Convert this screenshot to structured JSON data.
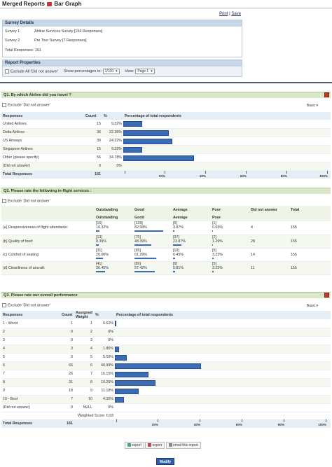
{
  "header": {
    "title_part1": "Merged Reports",
    "title_part2": "Bar Graph",
    "print_link": "Print",
    "save_link": "Save",
    "link_separator": "|"
  },
  "survey_details": {
    "heading": "Survey Details",
    "rows": [
      {
        "label": "Survey 1",
        "value": "Airline Services Survey [154 Responses]"
      },
      {
        "label": "Survey 2",
        "value": "Pre Tour Survey [7 Responses]"
      }
    ],
    "total_label": "Total Responses:",
    "total_value": "161"
  },
  "report_properties": {
    "heading": "Report Properties",
    "exclude_label": "Exclude All 'Did not answer'",
    "show_pct_label": "Show percentages to:",
    "show_pct_value": "1/100",
    "view_label": "View:",
    "view_value": "Page 1"
  },
  "colors": {
    "bar": "#3a6bb5",
    "question_bar": "#d9e8c8",
    "header_bg": "#c8d7e8",
    "separator": "#4a5d74",
    "modify_btn": "#2e5fa8"
  },
  "q1": {
    "title": "Q1.  By which Airline did you travel ?",
    "exclude_label": "Exclude 'Did not answer'",
    "view_mode": "Basic",
    "columns": [
      "Responses",
      "Count",
      "%",
      "Percentage of total respondents"
    ],
    "rows": [
      {
        "label": "United Airlines",
        "count": "15",
        "pct": "9.32%",
        "value": 9.32
      },
      {
        "label": "Delta Airlines",
        "count": "36",
        "pct": "22.36%",
        "value": 22.36
      },
      {
        "label": "US Airways",
        "count": "39",
        "pct": "24.22%",
        "value": 24.22
      },
      {
        "label": "Singapore Airlines",
        "count": "15",
        "pct": "9.32%",
        "value": 9.32
      },
      {
        "label": "Other (please specify)",
        "count": "56",
        "pct": "34.78%",
        "value": 34.78
      },
      {
        "label": "(Did not answer)",
        "count": "0",
        "pct": "0%",
        "value": 0
      }
    ],
    "total_label": "Total Responses",
    "total_value": "161",
    "axis_ticks": [
      "20%",
      "40%",
      "60%",
      "80%",
      "100%"
    ]
  },
  "q2": {
    "title": "Q2.  Please rate the following in-flight services :",
    "exclude_label": "Exclude 'Did not answer'",
    "columns": [
      "",
      "Outstanding",
      "Good",
      "Average",
      "Poor",
      "Did not answer",
      "Total"
    ],
    "subheader": [
      "",
      "Outstanding",
      "Good",
      "Average",
      "Poor",
      "",
      ""
    ],
    "rows": [
      {
        "label": "(a) Responsiveness of flight attendants:",
        "cells": [
          [
            "[16]",
            "10.32%",
            10.32
          ],
          [
            "[128]",
            "82.58%",
            82.58
          ],
          [
            "[6]",
            "3.87%",
            3.87
          ],
          [
            "[1]",
            "0.65%",
            0.65
          ]
        ],
        "dna": "4",
        "total": "155"
      },
      {
        "label": "(b) Quality of food:",
        "cells": [
          [
            "[13]",
            "8.39%",
            8.39
          ],
          [
            "[75]",
            "48.39%",
            48.39
          ],
          [
            "[37]",
            "23.87%",
            23.87
          ],
          [
            "[2]",
            "1.29%",
            1.29
          ]
        ],
        "dna": "28",
        "total": "155"
      },
      {
        "label": "(c) Comfort of seating:",
        "cells": [
          [
            "[31]",
            "20.00%",
            20.0
          ],
          [
            "[95]",
            "61.29%",
            61.29
          ],
          [
            "[10]",
            "6.45%",
            6.45
          ],
          [
            "[5]",
            "3.23%",
            3.23
          ]
        ],
        "dna": "14",
        "total": "155"
      },
      {
        "label": "(d) Cleanliness of aircraft:",
        "cells": [
          [
            "[41]",
            "26.45%",
            26.45
          ],
          [
            "[89]",
            "57.42%",
            57.42
          ],
          [
            "[9]",
            "5.81%",
            5.81
          ],
          [
            "[5]",
            "3.23%",
            3.23
          ]
        ],
        "dna": "11",
        "total": "155"
      }
    ]
  },
  "q3": {
    "title": "Q3.  Please rate our overall performance",
    "exclude_label": "Exclude 'Did not answer'",
    "view_mode": "Basic",
    "columns": [
      "Responses",
      "Count",
      "Assigned Weight",
      "%",
      "Percentage of total respondents"
    ],
    "rows": [
      {
        "label": "1 - Worst",
        "count": "1",
        "weight": "1",
        "pct": "0.62%",
        "value": 0.62
      },
      {
        "label": "2",
        "count": "0",
        "weight": "2",
        "pct": "0%",
        "value": 0
      },
      {
        "label": "3",
        "count": "0",
        "weight": "3",
        "pct": "0%",
        "value": 0
      },
      {
        "label": "4",
        "count": "3",
        "weight": "4",
        "pct": "1.86%",
        "value": 1.86
      },
      {
        "label": "5",
        "count": "9",
        "weight": "5",
        "pct": "5.59%",
        "value": 5.59
      },
      {
        "label": "6",
        "count": "66",
        "weight": "6",
        "pct": "40.99%",
        "value": 40.99
      },
      {
        "label": "7",
        "count": "26",
        "weight": "7",
        "pct": "16.15%",
        "value": 16.15
      },
      {
        "label": "8",
        "count": "31",
        "weight": "8",
        "pct": "19.25%",
        "value": 19.25
      },
      {
        "label": "9",
        "count": "18",
        "weight": "9",
        "pct": "11.18%",
        "value": 11.18
      },
      {
        "label": "10 - Best",
        "count": "7",
        "weight": "10",
        "pct": "4.35%",
        "value": 4.35
      },
      {
        "label": "(Did not answer)",
        "count": "0",
        "weight": "NULL",
        "pct": "0%",
        "value": 0
      }
    ],
    "weighted_score": "Weighted Score: 6.93",
    "total_label": "Total Responses",
    "total_value": "161",
    "axis_ticks": [
      "20%",
      "40%",
      "60%",
      "80%",
      "100%"
    ]
  },
  "footer": {
    "export1": "export",
    "export2": "export",
    "email": "email this report",
    "modify": "Modify"
  }
}
